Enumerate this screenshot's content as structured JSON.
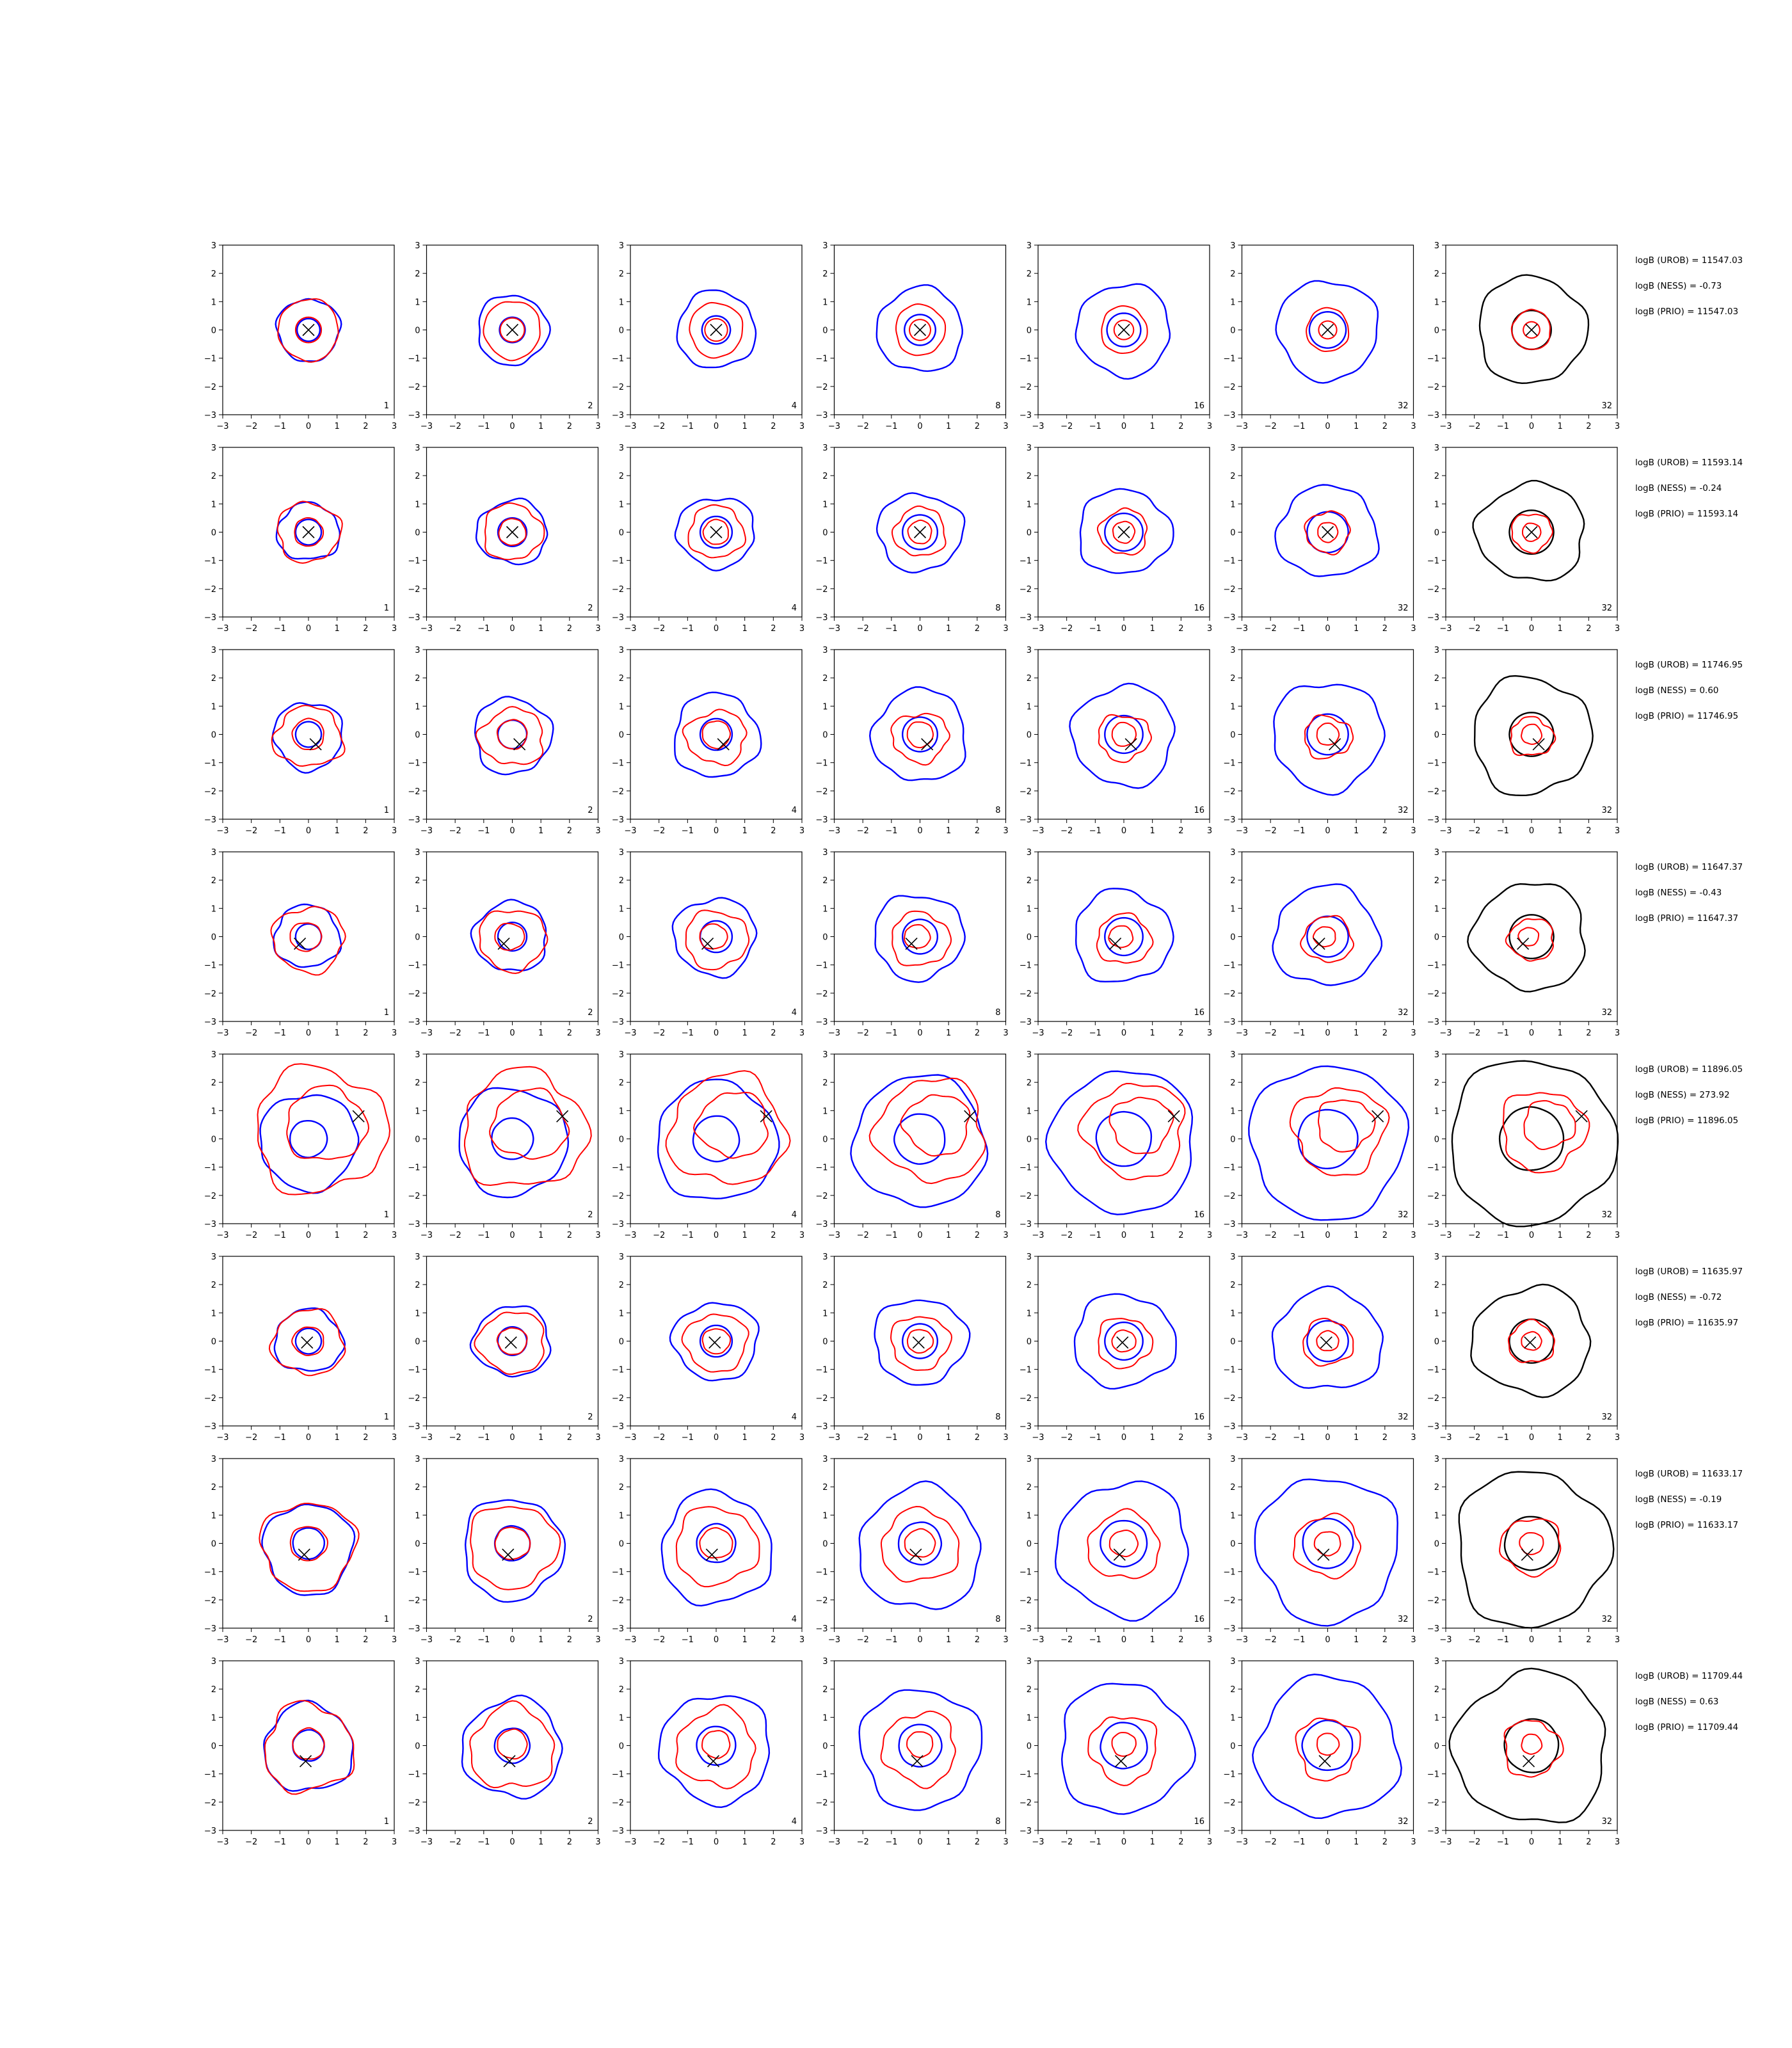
{
  "chart_data": {
    "type": "contour-grid",
    "xlim": [
      -3,
      3
    ],
    "ylim": [
      -3,
      3
    ],
    "x_ticks": [
      "−3",
      "−2",
      "−1",
      "0",
      "1",
      "2",
      "3"
    ],
    "y_ticks": [
      "3",
      "2",
      "1",
      "0",
      "−1",
      "−2",
      "−3"
    ],
    "columns": [
      "1",
      "2",
      "4",
      "8",
      "16",
      "32",
      "32"
    ],
    "colors": {
      "outer": "#0000ff",
      "inner": "#ff0000",
      "last": "#000000",
      "marker": "#000000"
    },
    "rows": [
      {
        "marker": [
          0.0,
          0.0
        ],
        "blue": [
          [
            0,
            0,
            1.1,
            1.1,
            0.08
          ],
          [
            0,
            0,
            0.4,
            0.4,
            0.0
          ]
        ],
        "red": [
          [
            0,
            0,
            1.05,
            1.1,
            0.05
          ],
          [
            0,
            0,
            0.45,
            0.45,
            0.0
          ]
        ],
        "stats": [
          "logB (UROB) = 11547.03",
          "logB (NESS) = -0.73",
          "logB (PRIO) = 11547.03"
        ]
      },
      {
        "marker": [
          0.0,
          0.0
        ],
        "blue": [
          [
            0,
            0,
            1.1,
            1.0,
            0.1
          ],
          [
            0,
            0,
            0.45,
            0.45,
            0.0
          ]
        ],
        "red": [
          [
            0,
            0,
            1.1,
            1.05,
            0.12
          ],
          [
            0,
            0,
            0.5,
            0.5,
            0.05
          ]
        ],
        "stats": [
          "logB (UROB) = 11593.14",
          "logB (NESS) = -0.24",
          "logB (PRIO) = 11593.14"
        ]
      },
      {
        "marker": [
          0.25,
          -0.35
        ],
        "blue": [
          [
            0,
            -0.05,
            1.2,
            1.2,
            0.1
          ],
          [
            0,
            0,
            0.45,
            0.45,
            0.0
          ]
        ],
        "red": [
          [
            0,
            -0.1,
            1.2,
            1.05,
            0.15
          ],
          [
            0,
            0,
            0.55,
            0.55,
            0.05
          ]
        ],
        "stats": [
          "logB (UROB) = 11746.95",
          "logB (NESS) = 0.60",
          "logB (PRIO) = 11746.95"
        ]
      },
      {
        "marker": [
          -0.3,
          -0.25
        ],
        "blue": [
          [
            -0.05,
            0,
            1.15,
            1.1,
            0.1
          ],
          [
            0,
            0,
            0.45,
            0.45,
            0.0
          ]
        ],
        "red": [
          [
            0,
            -0.1,
            1.25,
            1.15,
            0.12
          ],
          [
            -0.1,
            0,
            0.55,
            0.5,
            0.05
          ]
        ],
        "stats": [
          "logB (UROB) = 11647.37",
          "logB (NESS) = -0.43",
          "logB (PRIO) = 11647.37"
        ]
      },
      {
        "marker": [
          1.75,
          0.8
        ],
        "blue": [
          [
            0,
            -0.1,
            1.7,
            1.7,
            0.08
          ],
          [
            0,
            0,
            0.65,
            0.65,
            0.02
          ]
        ],
        "red": [
          [
            0.4,
            0.3,
            2.3,
            2.2,
            0.15
          ],
          [
            0.6,
            0.5,
            1.4,
            1.3,
            0.12
          ]
        ],
        "stats": [
          "logB (UROB) = 11896.05",
          "logB (NESS) = 273.92",
          "logB (PRIO) = 11896.05"
        ]
      },
      {
        "marker": [
          -0.05,
          -0.05
        ],
        "blue": [
          [
            0,
            0,
            1.2,
            1.1,
            0.1
          ],
          [
            0,
            0,
            0.45,
            0.45,
            0.0
          ]
        ],
        "red": [
          [
            0,
            -0.05,
            1.25,
            1.15,
            0.12
          ],
          [
            0,
            0,
            0.55,
            0.5,
            0.05
          ]
        ],
        "stats": [
          "logB (UROB) = 11635.97",
          "logB (NESS) = -0.72",
          "logB (PRIO) = 11635.97"
        ]
      },
      {
        "marker": [
          -0.15,
          -0.4
        ],
        "blue": [
          [
            0,
            -0.2,
            1.55,
            1.6,
            0.1
          ],
          [
            0,
            0,
            0.55,
            0.55,
            0.02
          ]
        ],
        "red": [
          [
            0,
            -0.1,
            1.65,
            1.55,
            0.12
          ],
          [
            0,
            0,
            0.65,
            0.6,
            0.05
          ]
        ],
        "stats": [
          "logB (UROB) = 11633.17",
          "logB (NESS) = -0.19",
          "logB (PRIO) = 11633.17"
        ]
      },
      {
        "marker": [
          -0.1,
          -0.55
        ],
        "blue": [
          [
            0,
            -0.1,
            1.55,
            1.55,
            0.1
          ],
          [
            0,
            0,
            0.55,
            0.55,
            0.02
          ]
        ],
        "red": [
          [
            0,
            -0.1,
            1.55,
            1.55,
            0.15
          ],
          [
            0,
            0.05,
            0.55,
            0.55,
            0.05
          ]
        ],
        "stats": [
          "logB (UROB) = 11709.44",
          "logB (NESS) = 0.63",
          "logB (PRIO) = 11709.44"
        ]
      }
    ]
  }
}
